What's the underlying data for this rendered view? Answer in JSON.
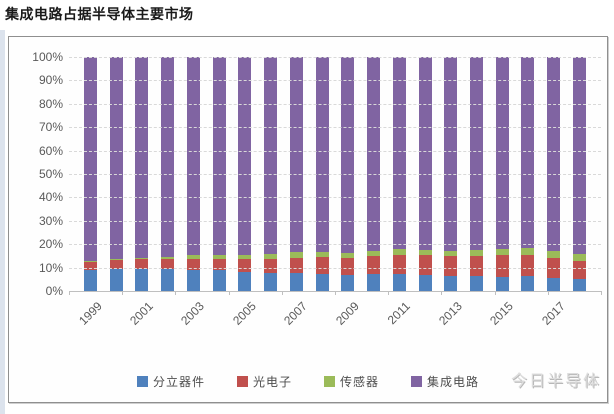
{
  "page": {
    "title": "集成电路占据半导体主要市场"
  },
  "watermark": "今日半导体",
  "chart_data": {
    "type": "bar",
    "stacked": true,
    "percent_stacked": true,
    "title": "集成电路占据半导体主要市场",
    "unit": "%",
    "categories": [
      "1999",
      "2000",
      "2001",
      "2002",
      "2003",
      "2004",
      "2005",
      "2006",
      "2007",
      "2008",
      "2009",
      "2010",
      "2011",
      "2012",
      "2013",
      "2014",
      "2015",
      "2016",
      "2017",
      "2018"
    ],
    "x_axis_labels": [
      "1999",
      "2001",
      "2003",
      "2005",
      "2007",
      "2009",
      "2011",
      "2013",
      "2015",
      "2017"
    ],
    "y_ticks": [
      "100%",
      "90%",
      "80%",
      "70%",
      "60%",
      "50%",
      "40%",
      "30%",
      "20%",
      "10%",
      "0%"
    ],
    "ylim": [
      0,
      100
    ],
    "grid": "horizontal-dashed",
    "legend_position": "bottom",
    "series": [
      {
        "name": "分立器件",
        "semantic": "discrete-devices",
        "color": "#4F81BD",
        "values": [
          9.0,
          9.2,
          9.5,
          9.2,
          9.0,
          8.8,
          8.0,
          7.8,
          7.5,
          7.3,
          7.0,
          7.3,
          7.4,
          7.0,
          6.5,
          6.5,
          6.2,
          6.3,
          5.5,
          5.0
        ]
      },
      {
        "name": "光电子",
        "semantic": "optoelectronics",
        "color": "#C0504D",
        "values": [
          3.5,
          4.0,
          4.3,
          4.5,
          4.8,
          5.0,
          5.5,
          6.0,
          6.8,
          7.3,
          7.3,
          7.6,
          8.0,
          8.3,
          8.3,
          8.3,
          9.0,
          9.3,
          8.5,
          8.0
        ]
      },
      {
        "name": "传感器",
        "semantic": "sensors",
        "color": "#9BBB59",
        "values": [
          0.4,
          0.4,
          0.5,
          0.8,
          1.5,
          1.7,
          1.7,
          2.0,
          2.2,
          2.2,
          2.0,
          2.4,
          2.5,
          2.4,
          2.5,
          2.6,
          2.7,
          2.8,
          3.0,
          2.8
        ]
      },
      {
        "name": "集成电路",
        "semantic": "integrated-circuits",
        "color": "#8064A2",
        "values": [
          87.1,
          86.4,
          85.7,
          85.5,
          84.7,
          84.5,
          84.8,
          84.2,
          83.5,
          83.2,
          83.7,
          82.7,
          82.1,
          82.3,
          82.7,
          82.6,
          82.1,
          81.6,
          83.0,
          84.2
        ]
      }
    ]
  }
}
